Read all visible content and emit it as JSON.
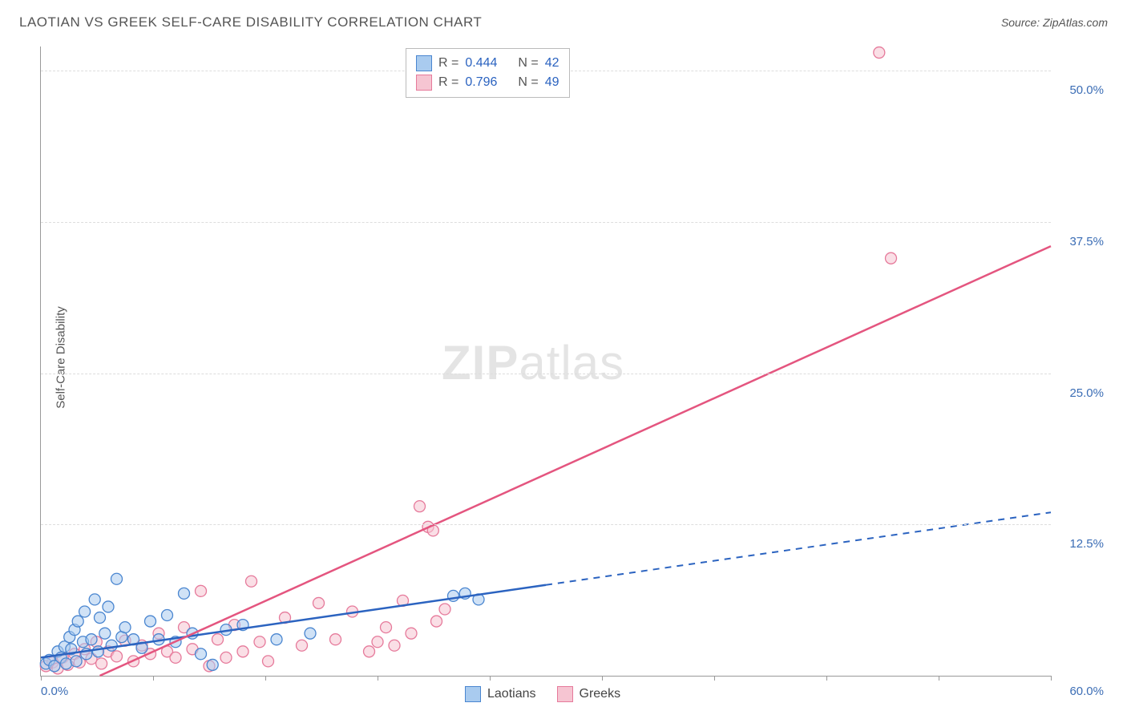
{
  "title": "LAOTIAN VS GREEK SELF-CARE DISABILITY CORRELATION CHART",
  "source_label": "Source: ZipAtlas.com",
  "ylabel": "Self-Care Disability",
  "watermark": {
    "bold": "ZIP",
    "light": "atlas"
  },
  "colors": {
    "series_a_fill": "#a9cbef",
    "series_a_stroke": "#4a86d0",
    "series_b_fill": "#f6c5d2",
    "series_b_stroke": "#e67a9b",
    "line_a": "#2b63c0",
    "line_b": "#e4557f",
    "tick_text": "#3b6db5",
    "grid": "#dddddd",
    "axis": "#999999",
    "value_text": "#2b63c0"
  },
  "chart": {
    "type": "scatter",
    "xlim": [
      0,
      60
    ],
    "ylim": [
      0,
      52
    ],
    "yticks": [
      12.5,
      25.0,
      37.5,
      50.0
    ],
    "ytick_labels": [
      "12.5%",
      "25.0%",
      "37.5%",
      "50.0%"
    ],
    "xtick_positions": [
      0,
      6.67,
      13.33,
      20,
      26.67,
      33.33,
      40,
      46.67,
      53.33,
      60
    ],
    "x_origin_label": "0.0%",
    "x_max_label": "60.0%",
    "marker_radius": 7,
    "marker_opacity": 0.55,
    "line_width": 2.5
  },
  "stats_legend": {
    "rows": [
      {
        "swatch": "a",
        "r_label": "R =",
        "r_value": "0.444",
        "n_label": "N =",
        "n_value": "42"
      },
      {
        "swatch": "b",
        "r_label": "R =",
        "r_value": "0.796",
        "n_label": "N =",
        "n_value": "49"
      }
    ]
  },
  "bottom_legend": {
    "items": [
      {
        "swatch": "a",
        "label": "Laotians"
      },
      {
        "swatch": "b",
        "label": "Greeks"
      }
    ]
  },
  "series_a": {
    "points": [
      [
        0.3,
        1.0
      ],
      [
        0.5,
        1.3
      ],
      [
        0.8,
        0.8
      ],
      [
        1.0,
        2.0
      ],
      [
        1.2,
        1.5
      ],
      [
        1.4,
        2.4
      ],
      [
        1.5,
        1.0
      ],
      [
        1.7,
        3.2
      ],
      [
        1.8,
        2.2
      ],
      [
        2.0,
        3.8
      ],
      [
        2.1,
        1.2
      ],
      [
        2.2,
        4.5
      ],
      [
        2.5,
        2.8
      ],
      [
        2.6,
        5.3
      ],
      [
        2.7,
        1.8
      ],
      [
        3.0,
        3.0
      ],
      [
        3.2,
        6.3
      ],
      [
        3.4,
        2.0
      ],
      [
        3.5,
        4.8
      ],
      [
        3.8,
        3.5
      ],
      [
        4.0,
        5.7
      ],
      [
        4.2,
        2.5
      ],
      [
        4.5,
        8.0
      ],
      [
        4.8,
        3.2
      ],
      [
        5.0,
        4.0
      ],
      [
        5.5,
        3.0
      ],
      [
        6.0,
        2.3
      ],
      [
        6.5,
        4.5
      ],
      [
        7.0,
        3.0
      ],
      [
        7.5,
        5.0
      ],
      [
        8.0,
        2.8
      ],
      [
        8.5,
        6.8
      ],
      [
        9.0,
        3.5
      ],
      [
        9.5,
        1.8
      ],
      [
        10.2,
        0.9
      ],
      [
        11.0,
        3.8
      ],
      [
        12.0,
        4.2
      ],
      [
        14.0,
        3.0
      ],
      [
        16.0,
        3.5
      ],
      [
        24.5,
        6.6
      ],
      [
        25.2,
        6.8
      ],
      [
        26.0,
        6.3
      ]
    ],
    "trend": {
      "x1": 0,
      "y1": 1.5,
      "x2": 30,
      "y2": 7.5,
      "dash_to_x": 60,
      "dash_to_y": 13.5
    }
  },
  "series_b": {
    "points": [
      [
        0.3,
        0.8
      ],
      [
        0.7,
        1.1
      ],
      [
        1.0,
        0.6
      ],
      [
        1.3,
        1.5
      ],
      [
        1.6,
        0.9
      ],
      [
        2.0,
        1.8
      ],
      [
        2.3,
        1.1
      ],
      [
        2.6,
        2.2
      ],
      [
        3.0,
        1.4
      ],
      [
        3.3,
        2.8
      ],
      [
        3.6,
        1.0
      ],
      [
        4.0,
        2.0
      ],
      [
        4.5,
        1.6
      ],
      [
        5.0,
        2.9
      ],
      [
        5.5,
        1.2
      ],
      [
        6.0,
        2.5
      ],
      [
        6.5,
        1.8
      ],
      [
        7.0,
        3.5
      ],
      [
        7.5,
        2.0
      ],
      [
        8.0,
        1.5
      ],
      [
        8.5,
        4.0
      ],
      [
        9.0,
        2.2
      ],
      [
        9.5,
        7.0
      ],
      [
        10.0,
        0.8
      ],
      [
        10.5,
        3.0
      ],
      [
        11.0,
        1.5
      ],
      [
        11.5,
        4.2
      ],
      [
        12.0,
        2.0
      ],
      [
        12.5,
        7.8
      ],
      [
        13.0,
        2.8
      ],
      [
        13.5,
        1.2
      ],
      [
        14.5,
        4.8
      ],
      [
        15.5,
        2.5
      ],
      [
        16.5,
        6.0
      ],
      [
        17.5,
        3.0
      ],
      [
        18.5,
        5.3
      ],
      [
        19.5,
        2.0
      ],
      [
        20.5,
        4.0
      ],
      [
        21.0,
        2.5
      ],
      [
        21.5,
        6.2
      ],
      [
        22.0,
        3.5
      ],
      [
        22.5,
        14.0
      ],
      [
        23.0,
        12.3
      ],
      [
        23.3,
        12.0
      ],
      [
        23.5,
        4.5
      ],
      [
        24.0,
        5.5
      ],
      [
        50.5,
        34.5
      ],
      [
        49.8,
        51.5
      ],
      [
        20.0,
        2.8
      ]
    ],
    "trend": {
      "x1": 3.5,
      "y1": 0,
      "x2": 60,
      "y2": 35.5
    }
  }
}
